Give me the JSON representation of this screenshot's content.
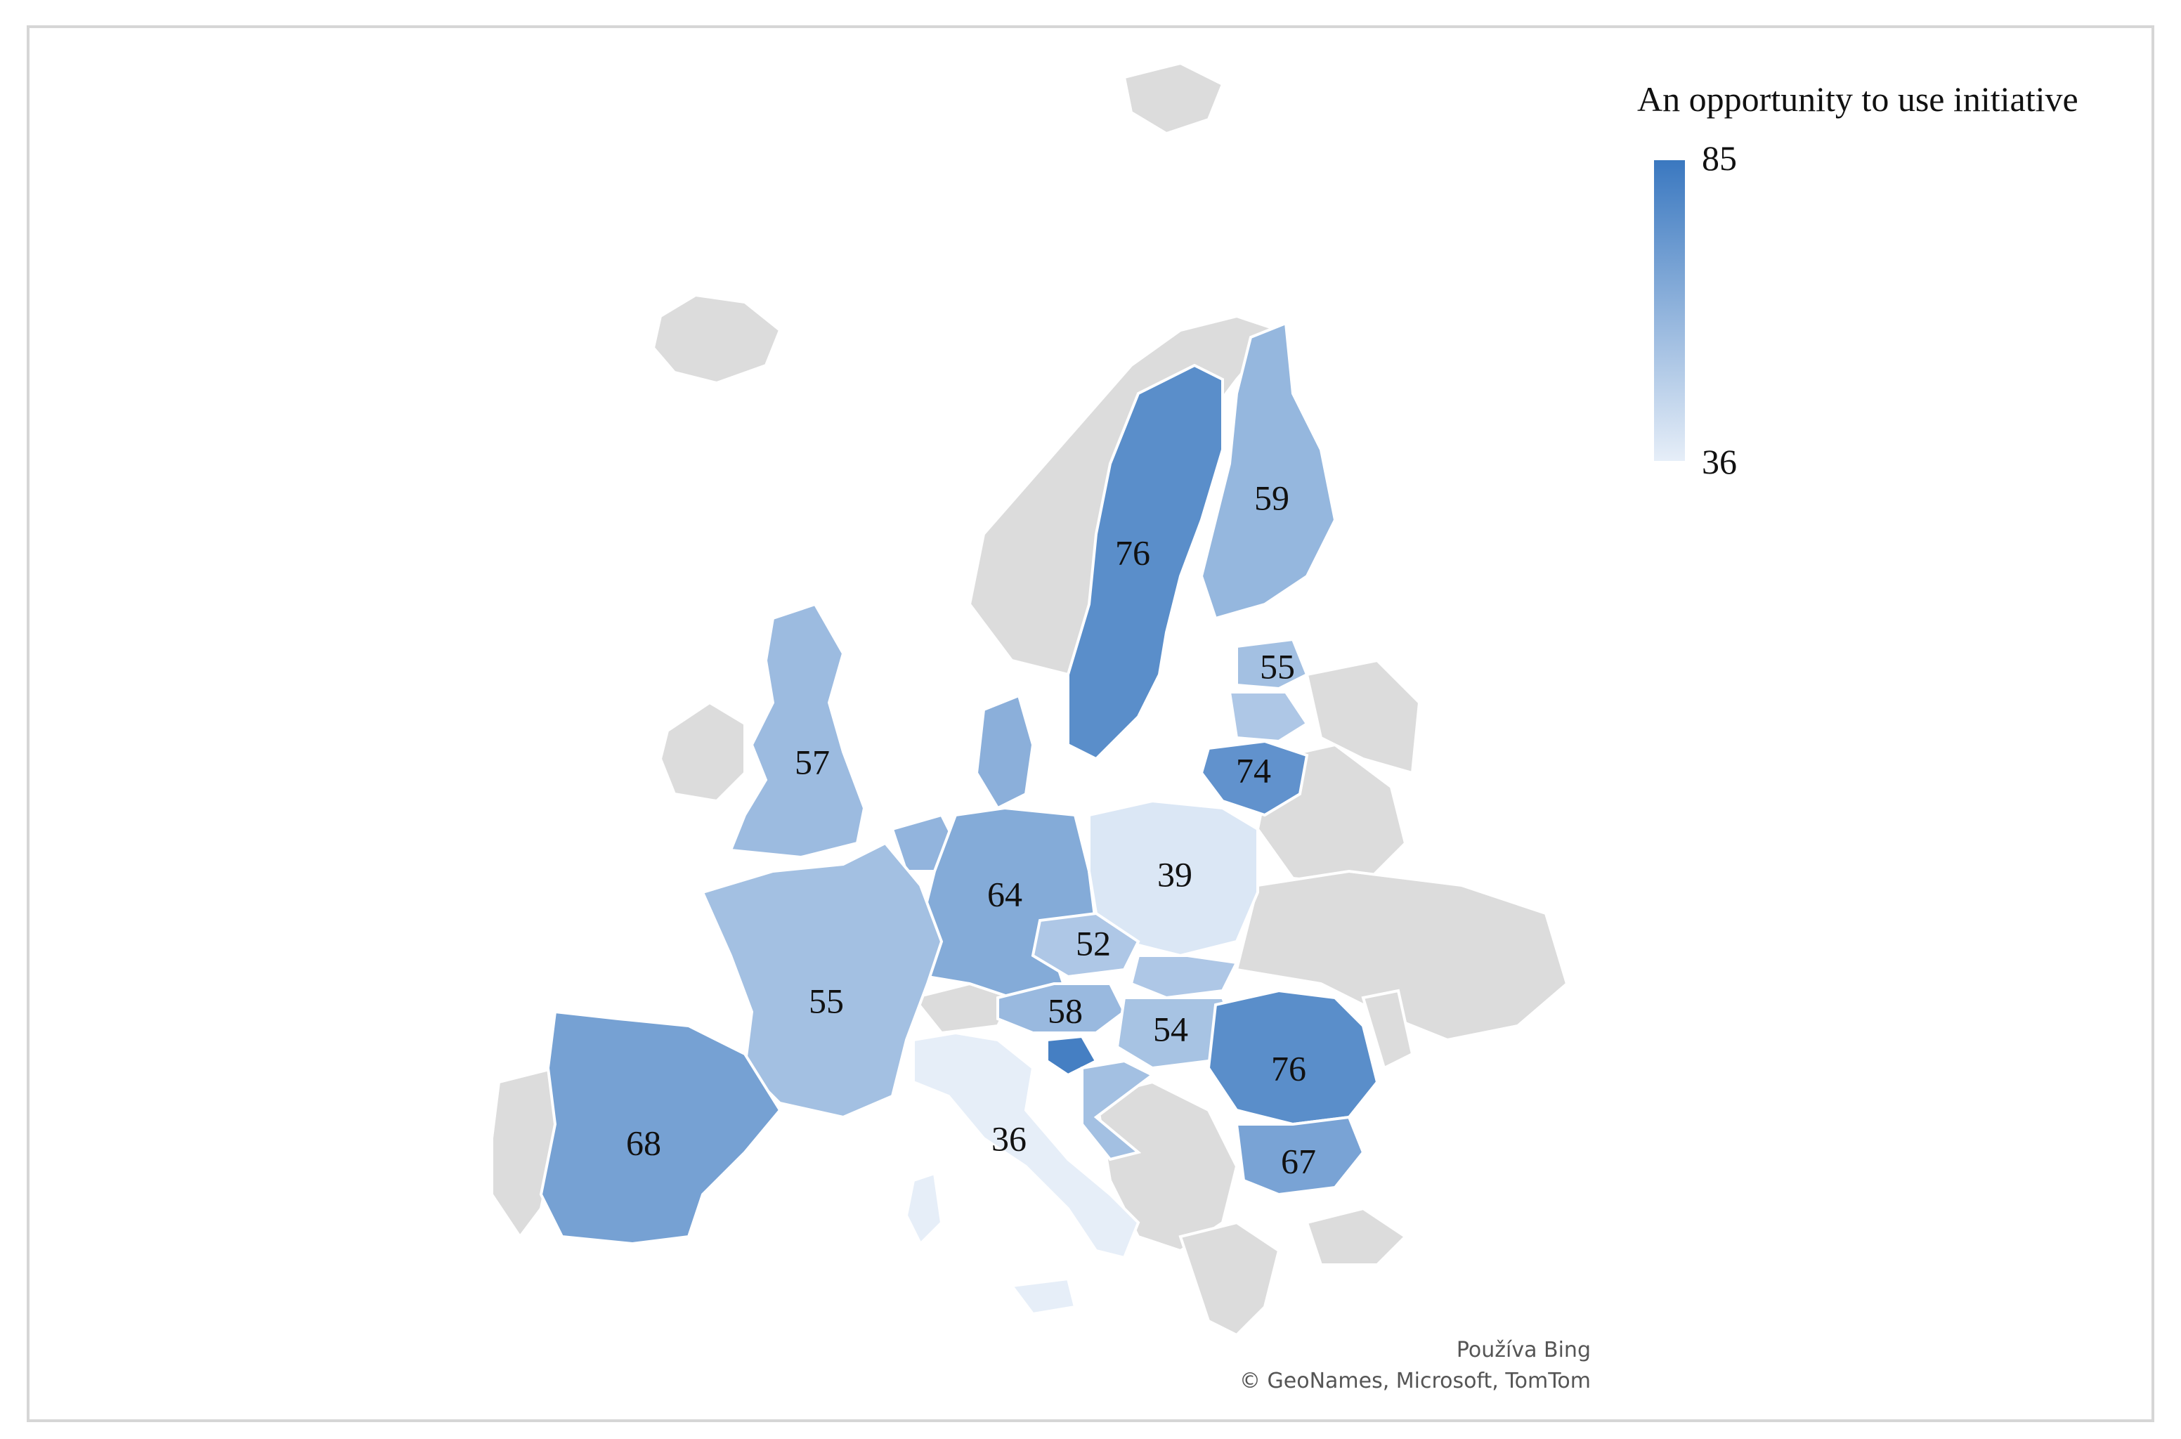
{
  "legend": {
    "title": "An opportunity to use initiative",
    "max_label": "85",
    "min_label": "36",
    "color_max": "#3a78c0",
    "color_min": "#e6eef8"
  },
  "attribution": {
    "line1": "Používa Bing",
    "line2": "© GeoNames, Microsoft, TomTom"
  },
  "colors": {
    "no_data": "#dcdcdc",
    "border": "#ffffff"
  },
  "chart_data": {
    "type": "choropleth",
    "value_range": [
      36,
      85
    ],
    "regions": [
      {
        "id": "sweden",
        "value": 76,
        "label": "76"
      },
      {
        "id": "finland",
        "value": 59,
        "label": "59"
      },
      {
        "id": "estonia",
        "value": 55,
        "label": "55"
      },
      {
        "id": "lithuania",
        "value": 74,
        "label": "74"
      },
      {
        "id": "united-kingdom",
        "value": 57,
        "label": "57"
      },
      {
        "id": "germany",
        "value": 64,
        "label": "64"
      },
      {
        "id": "poland",
        "value": 39,
        "label": "39"
      },
      {
        "id": "czechia",
        "value": 52,
        "label": "52"
      },
      {
        "id": "austria",
        "value": 58,
        "label": "58"
      },
      {
        "id": "hungary",
        "value": 54,
        "label": "54"
      },
      {
        "id": "romania",
        "value": 76,
        "label": "76"
      },
      {
        "id": "bulgaria",
        "value": 67,
        "label": "67"
      },
      {
        "id": "france",
        "value": 55,
        "label": "55"
      },
      {
        "id": "spain",
        "value": 68,
        "label": "68"
      },
      {
        "id": "italy",
        "value": 36,
        "label": "36"
      },
      {
        "id": "slovenia",
        "value": 82,
        "label": ""
      },
      {
        "id": "denmark",
        "value": 62,
        "label": ""
      },
      {
        "id": "netherlands",
        "value": 60,
        "label": ""
      },
      {
        "id": "slovakia",
        "value": 52,
        "label": ""
      },
      {
        "id": "croatia",
        "value": 55,
        "label": ""
      },
      {
        "id": "latvia",
        "value": 52,
        "label": ""
      }
    ]
  }
}
